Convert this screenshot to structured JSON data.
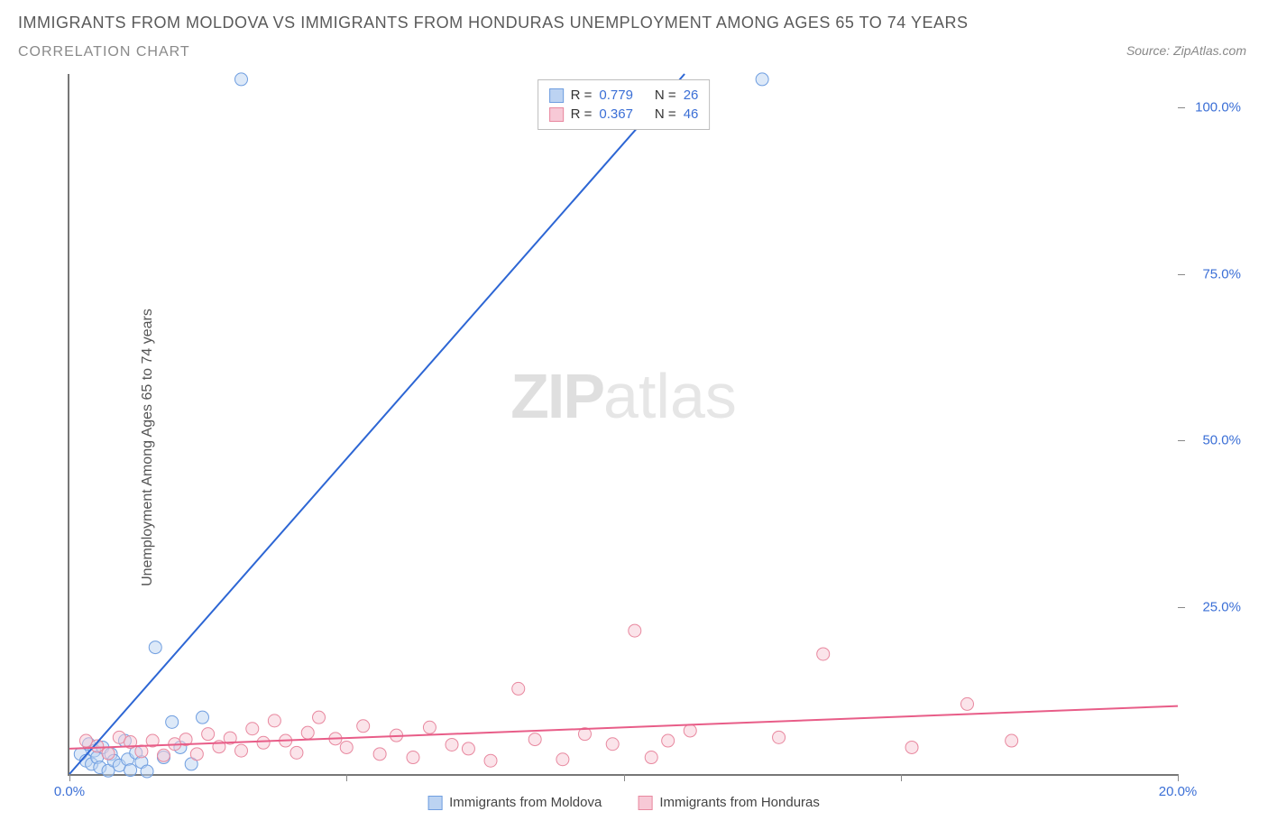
{
  "title": "IMMIGRANTS FROM MOLDOVA VS IMMIGRANTS FROM HONDURAS UNEMPLOYMENT AMONG AGES 65 TO 74 YEARS",
  "subtitle": "CORRELATION CHART",
  "source": "Source: ZipAtlas.com",
  "ylabel": "Unemployment Among Ages 65 to 74 years",
  "watermark_zip": "ZIP",
  "watermark_atlas": "atlas",
  "chart": {
    "type": "scatter",
    "xlim": [
      0,
      20
    ],
    "ylim": [
      0,
      105
    ],
    "x_ticks": [
      0,
      5,
      10,
      15,
      20
    ],
    "x_tick_labels": [
      "0.0%",
      "",
      "",
      "",
      "20.0%"
    ],
    "y_ticks": [
      25,
      50,
      75,
      100
    ],
    "y_tick_labels": [
      "25.0%",
      "50.0%",
      "75.0%",
      "100.0%"
    ],
    "background_color": "#ffffff",
    "axis_color": "#777777",
    "tick_label_color": "#3b6fd6",
    "marker_radius": 7,
    "marker_opacity": 0.5,
    "line_width": 2
  },
  "series": [
    {
      "key": "moldova",
      "label": "Immigrants from Moldova",
      "color_fill": "#bcd3f2",
      "color_stroke": "#6f9ee0",
      "line_color": "#2d66d4",
      "R": "0.779",
      "N": "26",
      "regression": {
        "x1": 0,
        "y1": 0,
        "x2": 11.1,
        "y2": 105
      },
      "points": [
        [
          0.2,
          3.0
        ],
        [
          0.3,
          2.0
        ],
        [
          0.35,
          4.5
        ],
        [
          0.4,
          1.5
        ],
        [
          0.45,
          3.5
        ],
        [
          0.5,
          2.5
        ],
        [
          0.55,
          1.0
        ],
        [
          0.6,
          4.0
        ],
        [
          0.7,
          0.5
        ],
        [
          0.75,
          3.0
        ],
        [
          0.8,
          2.0
        ],
        [
          0.9,
          1.3
        ],
        [
          1.0,
          5.0
        ],
        [
          1.05,
          2.2
        ],
        [
          1.1,
          0.6
        ],
        [
          1.2,
          3.2
        ],
        [
          1.3,
          1.8
        ],
        [
          1.4,
          0.4
        ],
        [
          1.55,
          19.0
        ],
        [
          1.7,
          2.5
        ],
        [
          1.85,
          7.8
        ],
        [
          2.0,
          4.0
        ],
        [
          2.2,
          1.5
        ],
        [
          2.4,
          8.5
        ],
        [
          3.1,
          104.2
        ],
        [
          12.5,
          104.2
        ]
      ]
    },
    {
      "key": "honduras",
      "label": "Immigrants from Honduras",
      "color_fill": "#f7c9d6",
      "color_stroke": "#e8889f",
      "line_color": "#e85d88",
      "R": "0.367",
      "N": "46",
      "regression": {
        "x1": 0,
        "y1": 3.8,
        "x2": 20,
        "y2": 10.2
      },
      "points": [
        [
          0.3,
          5.0
        ],
        [
          0.5,
          4.2
        ],
        [
          0.7,
          3.1
        ],
        [
          0.9,
          5.5
        ],
        [
          1.1,
          4.8
        ],
        [
          1.3,
          3.4
        ],
        [
          1.5,
          5.0
        ],
        [
          1.7,
          2.8
        ],
        [
          1.9,
          4.5
        ],
        [
          2.1,
          5.2
        ],
        [
          2.3,
          3.0
        ],
        [
          2.5,
          6.0
        ],
        [
          2.7,
          4.1
        ],
        [
          2.9,
          5.4
        ],
        [
          3.1,
          3.5
        ],
        [
          3.3,
          6.8
        ],
        [
          3.5,
          4.7
        ],
        [
          3.7,
          8.0
        ],
        [
          3.9,
          5.0
        ],
        [
          4.1,
          3.2
        ],
        [
          4.3,
          6.2
        ],
        [
          4.5,
          8.5
        ],
        [
          4.8,
          5.3
        ],
        [
          5.0,
          4.0
        ],
        [
          5.3,
          7.2
        ],
        [
          5.6,
          3.0
        ],
        [
          5.9,
          5.8
        ],
        [
          6.2,
          2.5
        ],
        [
          6.5,
          7.0
        ],
        [
          6.9,
          4.4
        ],
        [
          7.2,
          3.8
        ],
        [
          7.6,
          2.0
        ],
        [
          8.1,
          12.8
        ],
        [
          8.4,
          5.2
        ],
        [
          8.9,
          2.2
        ],
        [
          9.3,
          6.0
        ],
        [
          9.8,
          4.5
        ],
        [
          10.2,
          21.5
        ],
        [
          10.5,
          2.5
        ],
        [
          10.8,
          5.0
        ],
        [
          11.2,
          6.5
        ],
        [
          12.8,
          5.5
        ],
        [
          13.6,
          18.0
        ],
        [
          15.2,
          4.0
        ],
        [
          16.2,
          10.5
        ],
        [
          17.0,
          5.0
        ]
      ]
    }
  ],
  "legend_top": {
    "R_label": "R =",
    "N_label": "N ="
  }
}
